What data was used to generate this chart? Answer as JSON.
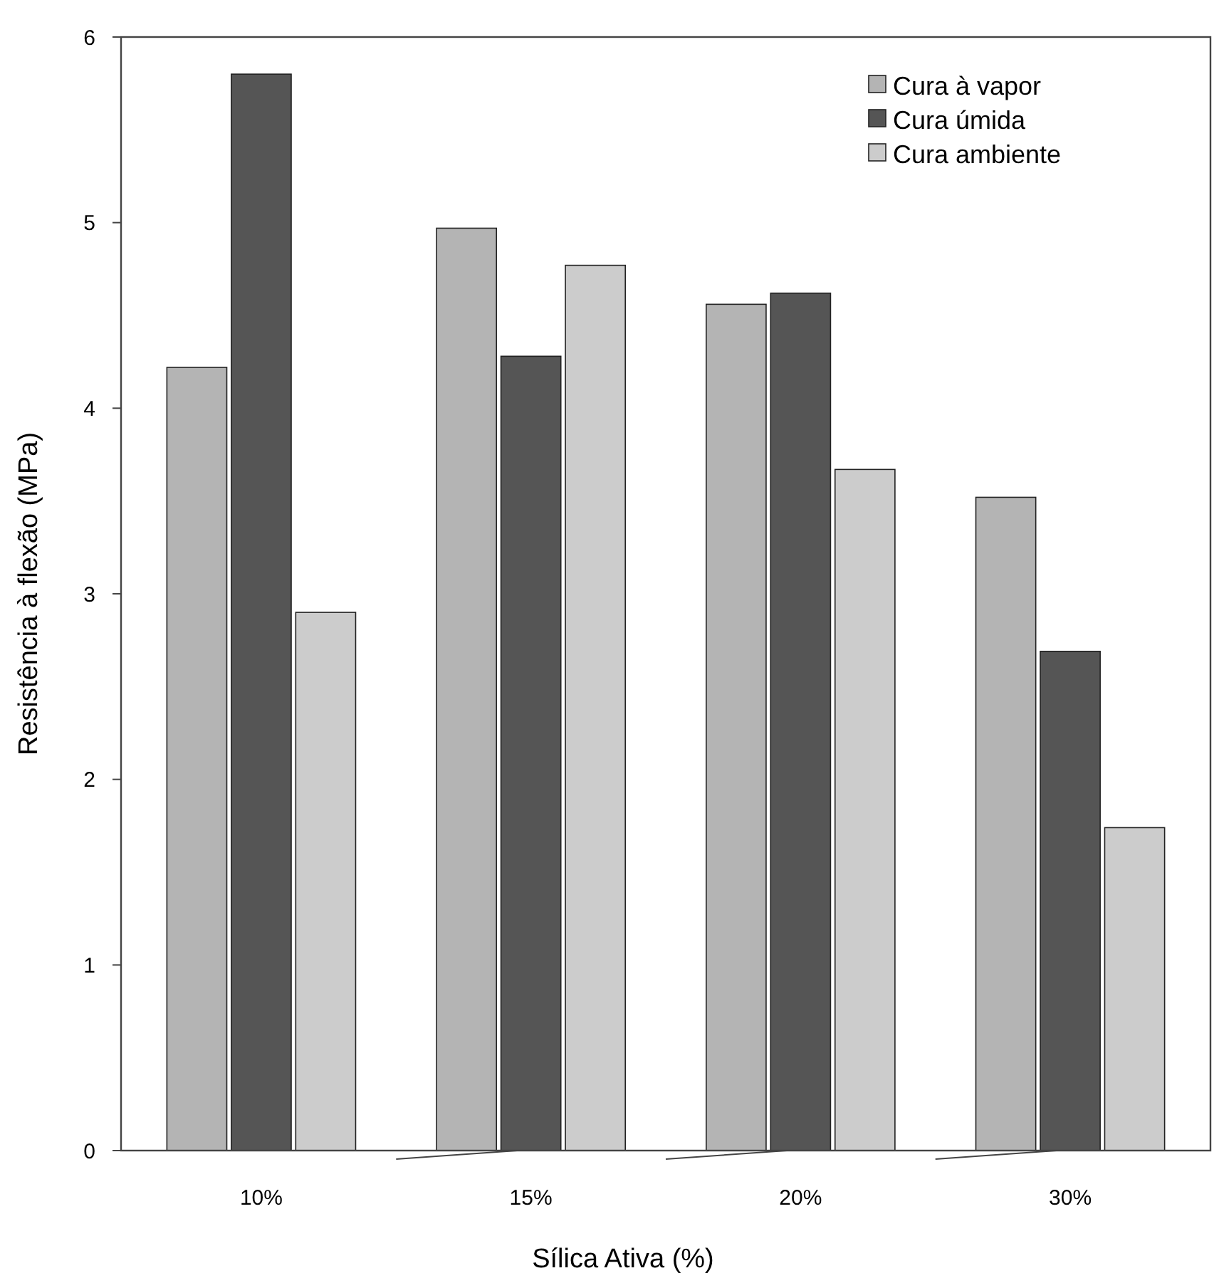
{
  "chart_data": {
    "type": "bar",
    "xlabel": "Sílica Ativa (%)",
    "ylabel": "Resistência à flexão (MPa)",
    "categories": [
      "10%",
      "15%",
      "20%",
      "30%"
    ],
    "series": [
      {
        "name": "Cura à vapor",
        "color": "#b4b4b4",
        "values": [
          4.22,
          4.97,
          4.56,
          3.52
        ]
      },
      {
        "name": "Cura úmida",
        "color": "#555555",
        "values": [
          5.8,
          4.28,
          4.62,
          2.69
        ]
      },
      {
        "name": "Cura ambiente",
        "color": "#cccccc",
        "values": [
          2.9,
          4.77,
          3.67,
          1.74
        ]
      }
    ],
    "ylim": [
      0,
      6
    ],
    "yticks": [
      0,
      1,
      2,
      3,
      4,
      5,
      6
    ],
    "legend": "top right",
    "grid": false
  }
}
